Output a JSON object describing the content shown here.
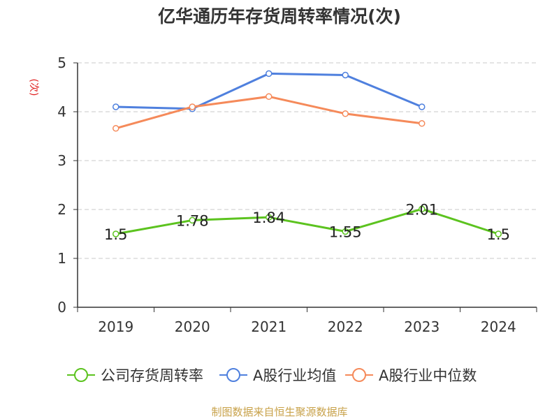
{
  "chart_data": {
    "type": "line",
    "title": "亿华通历年存货周转率情况(次)",
    "ylabel": "(次)",
    "xlabel": "",
    "categories": [
      "2019",
      "2020",
      "2021",
      "2022",
      "2023",
      "2024"
    ],
    "ylim": [
      0,
      5
    ],
    "yticks": [
      "0",
      "1",
      "2",
      "3",
      "4",
      "5"
    ],
    "grid": true,
    "legend_position": "bottom",
    "series": [
      {
        "name": "公司存货周转率",
        "color": "#5cc31f",
        "values": [
          1.5,
          1.78,
          1.84,
          1.55,
          2.01,
          1.5
        ],
        "labels": [
          "1.5",
          "1.78",
          "1.84",
          "1.55",
          "2.01",
          "1.5"
        ]
      },
      {
        "name": "A股行业均值",
        "color": "#4f80de",
        "values": [
          4.1,
          4.06,
          4.78,
          4.75,
          4.1,
          null
        ]
      },
      {
        "name": "A股行业中位数",
        "color": "#f58a5a",
        "values": [
          3.66,
          4.1,
          4.31,
          3.96,
          3.76,
          null
        ]
      }
    ]
  },
  "source_text": "制图数据来自恒生聚源数据库",
  "colors": {
    "title": "#333333",
    "ylabel": "#e02020",
    "source": "#c8a24a",
    "axis": "#333333",
    "grid": "#c8c8c8"
  }
}
